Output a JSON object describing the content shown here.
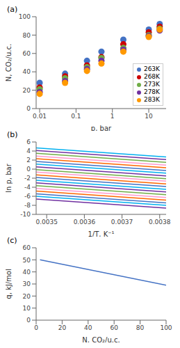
{
  "chart_data": [
    {
      "type": "scatter",
      "title": "(a)",
      "xlabel": "p, bar",
      "ylabel": "N, CO₂/u.c.",
      "log": "x",
      "grid": false,
      "legend": "lower right",
      "x": [
        0.01,
        0.05,
        0.2,
        0.5,
        2,
        10,
        20
      ],
      "series": [
        {
          "name": "263K",
          "color": "#4472C4",
          "values": [
            28,
            38,
            52,
            62,
            75,
            86,
            92
          ]
        },
        {
          "name": "268K",
          "color": "#CC0000",
          "values": [
            23,
            35,
            47,
            56,
            70,
            83,
            89
          ]
        },
        {
          "name": "273K",
          "color": "#70AD47",
          "values": [
            21,
            33,
            45,
            55,
            66,
            80,
            87
          ]
        },
        {
          "name": "278K",
          "color": "#7030A0",
          "values": [
            18,
            30,
            43,
            52,
            64,
            79,
            85
          ]
        },
        {
          "name": "283K",
          "color": "#FF9900",
          "values": [
            16,
            28,
            41,
            49,
            62,
            78,
            86
          ]
        }
      ],
      "xlim": [
        0.008,
        30
      ],
      "xticks": [
        0.01,
        0.1,
        1,
        10
      ],
      "ylim": [
        0,
        100
      ],
      "yticks": [
        0,
        20,
        40,
        60,
        80,
        100
      ]
    },
    {
      "type": "line",
      "title": "(b)",
      "xlabel": "1/T, K⁻¹",
      "ylabel": "ln p, bar",
      "grid": false,
      "x": [
        0.003472,
        0.003817
      ],
      "series": [
        {
          "color": "#00B0F0",
          "values": [
            4.7,
            2.699
          ]
        },
        {
          "color": "#7030A0",
          "values": [
            4.1,
            2.099
          ]
        },
        {
          "color": "#70AD47",
          "values": [
            3.5,
            1.499
          ]
        },
        {
          "color": "#FF99CC",
          "values": [
            2.9,
            0.899
          ]
        },
        {
          "color": "#FF6600",
          "values": [
            2.3,
            0.299
          ]
        },
        {
          "color": "#4472C4",
          "values": [
            1.7,
            -0.301
          ]
        },
        {
          "color": "#00B0F0",
          "values": [
            1.1,
            -0.901
          ]
        },
        {
          "color": "#7030A0",
          "values": [
            0.5,
            -1.501
          ]
        },
        {
          "color": "#70AD47",
          "values": [
            -0.1,
            -2.101
          ]
        },
        {
          "color": "#FF99CC",
          "values": [
            -0.65,
            -2.651
          ]
        },
        {
          "color": "#FF6600",
          "values": [
            -1.25,
            -3.251
          ]
        },
        {
          "color": "#4472C4",
          "values": [
            -1.85,
            -3.851
          ]
        },
        {
          "color": "#00B0F0",
          "values": [
            -2.45,
            -4.451
          ]
        },
        {
          "color": "#7030A0",
          "values": [
            -3.05,
            -5.051
          ]
        },
        {
          "color": "#70AD47",
          "values": [
            -3.65,
            -5.651
          ]
        },
        {
          "color": "#FF99CC",
          "values": [
            -4.25,
            -6.251
          ]
        },
        {
          "color": "#FF6600",
          "values": [
            -4.85,
            -6.851
          ]
        },
        {
          "color": "#4472C4",
          "values": [
            -5.45,
            -7.451
          ]
        },
        {
          "color": "#00B0F0",
          "values": [
            -6.0,
            -8.001
          ]
        },
        {
          "color": "#7030A0",
          "values": [
            -6.6,
            -8.601
          ]
        }
      ],
      "xlim": [
        0.003472,
        0.003817
      ],
      "xticks": [
        0.0035,
        0.0036,
        0.0037,
        0.0038
      ],
      "ylim": [
        -10,
        6
      ],
      "yticks": [
        -10,
        -8,
        -6,
        -4,
        -2,
        0,
        2,
        4,
        6
      ]
    },
    {
      "type": "line",
      "title": "(c)",
      "xlabel": "N, CO₂/u.c.",
      "ylabel": "q, kJ/mol",
      "grid": false,
      "x": [
        3,
        100
      ],
      "series": [
        {
          "color": "#4472C4",
          "values": [
            50,
            29
          ]
        }
      ],
      "xlim": [
        0,
        100
      ],
      "xticks": [
        0,
        20,
        40,
        60,
        80,
        100
      ],
      "ylim": [
        0,
        60
      ],
      "yticks": [
        0,
        10,
        20,
        30,
        40,
        50,
        60
      ]
    }
  ]
}
